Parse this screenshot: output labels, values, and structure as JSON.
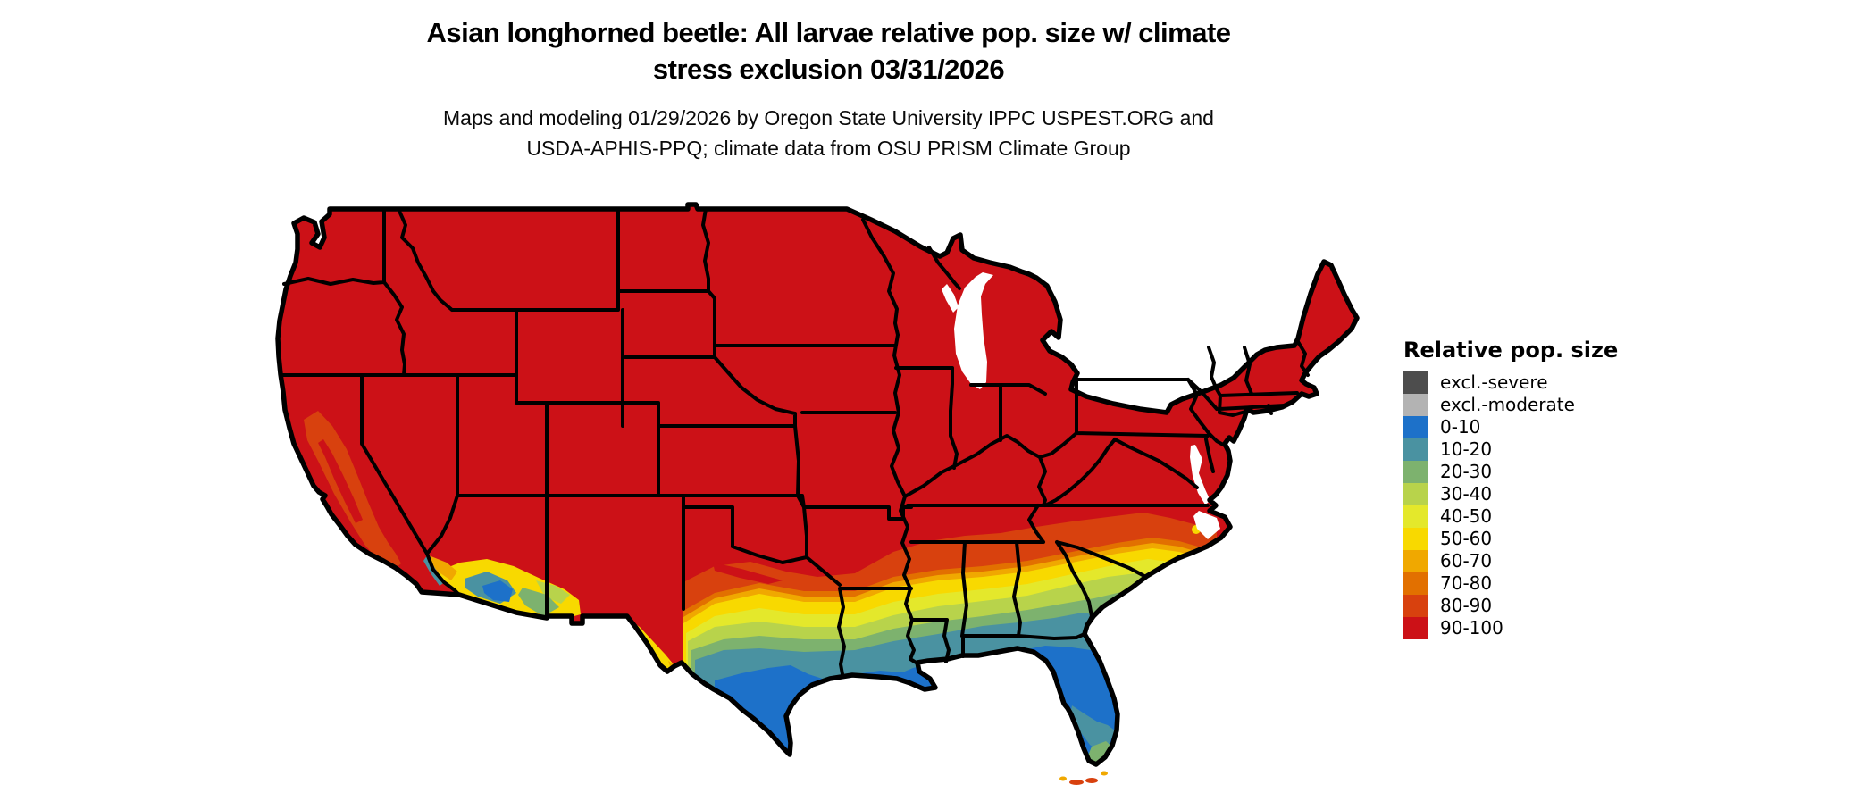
{
  "title": {
    "line1": "Asian longhorned beetle: All larvae relative pop. size w/ climate",
    "line2": "stress exclusion 03/31/2026"
  },
  "subtitle": {
    "line1": "Maps and modeling 01/29/2026 by Oregon State University IPPC USPEST.ORG and",
    "line2": "USDA-APHIS-PPQ; climate data from OSU PRISM Climate Group"
  },
  "legend": {
    "title": "Relative pop. size",
    "items": [
      {
        "label": "excl.-severe",
        "color": "#4d4d4d"
      },
      {
        "label": "excl.-moderate",
        "color": "#b3b3b3"
      },
      {
        "label": "0-10",
        "color": "#1d71c9"
      },
      {
        "label": "10-20",
        "color": "#4a92a1"
      },
      {
        "label": "20-30",
        "color": "#7db26e"
      },
      {
        "label": "30-40",
        "color": "#b8d34b"
      },
      {
        "label": "40-50",
        "color": "#e4e82b"
      },
      {
        "label": "50-60",
        "color": "#f8d900"
      },
      {
        "label": "60-70",
        "color": "#f0a800"
      },
      {
        "label": "70-80",
        "color": "#e27000"
      },
      {
        "label": "80-90",
        "color": "#d8410e"
      },
      {
        "label": "90-100",
        "color": "#cc1117"
      }
    ]
  },
  "chart_data": {
    "type": "choropleth_map",
    "region": "Contiguous United States",
    "title": "Asian longhorned beetle: All larvae relative pop. size w/ climate stress exclusion 03/31/2026",
    "classes": [
      "excl.-severe",
      "excl.-moderate",
      "0-10",
      "10-20",
      "20-30",
      "30-40",
      "40-50",
      "50-60",
      "60-70",
      "70-80",
      "80-90",
      "90-100"
    ],
    "legend_position": "right",
    "visible_pattern": {
      "90-100": "dominant class across the interior, northern, western and eastern U.S.",
      "80-90_to_50-60": "banded transition across Oklahoma, Texas, the Gulf South, and the Carolinas coastal plain",
      "40-50_to_20-30": "yellow-green to green belt across south Texas, Louisiana, Mississippi, Alabama, Georgia and south Florida",
      "10-20_and_0-10": "teal and blue along the Gulf Coast, south Texas, central Florida, and desert southern Arizona/California"
    }
  }
}
